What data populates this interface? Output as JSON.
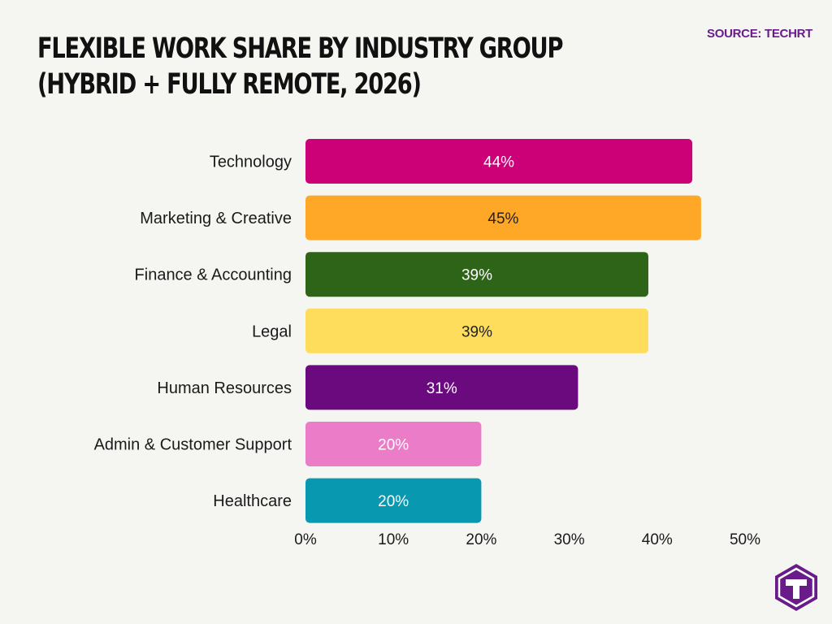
{
  "header": {
    "title_line1": "FLEXIBLE WORK SHARE BY INDUSTRY GROUP",
    "title_line2": "(HYBRID + FULLY REMOTE, 2026)",
    "source": "SOURCE: TECHRT"
  },
  "colors": {
    "background": "#f5f5f2",
    "source_text": "#6a1b8a",
    "logo": "#6a1b8a"
  },
  "logo": {
    "icon": "techrt-logo-icon"
  },
  "chart_data": {
    "type": "bar",
    "orientation": "horizontal",
    "categories": [
      "Technology",
      "Marketing & Creative",
      "Finance & Accounting",
      "Legal",
      "Human Resources",
      "Admin & Customer Support",
      "Healthcare"
    ],
    "values": [
      44,
      45,
      39,
      39,
      31,
      20,
      20
    ],
    "value_labels": [
      "44%",
      "45%",
      "39%",
      "39%",
      "31%",
      "20%",
      "20%"
    ],
    "bar_colors": [
      "#cc0077",
      "#ffa726",
      "#2e6418",
      "#ffdd5c",
      "#6b0a7e",
      "#ea7cc8",
      "#0898b0"
    ],
    "label_colors": [
      "#ffffff",
      "#222222",
      "#ffffff",
      "#222222",
      "#ffffff",
      "#ffffff",
      "#ffffff"
    ],
    "xlim": [
      0,
      50
    ],
    "x_ticks": [
      0,
      10,
      20,
      30,
      40,
      50
    ],
    "x_tick_labels": [
      "0%",
      "10%",
      "20%",
      "30%",
      "40%",
      "50%"
    ],
    "grid": false,
    "legend": "none",
    "title": "FLEXIBLE WORK SHARE BY INDUSTRY GROUP (HYBRID + FULLY REMOTE, 2026)",
    "xlabel": "",
    "ylabel": ""
  }
}
